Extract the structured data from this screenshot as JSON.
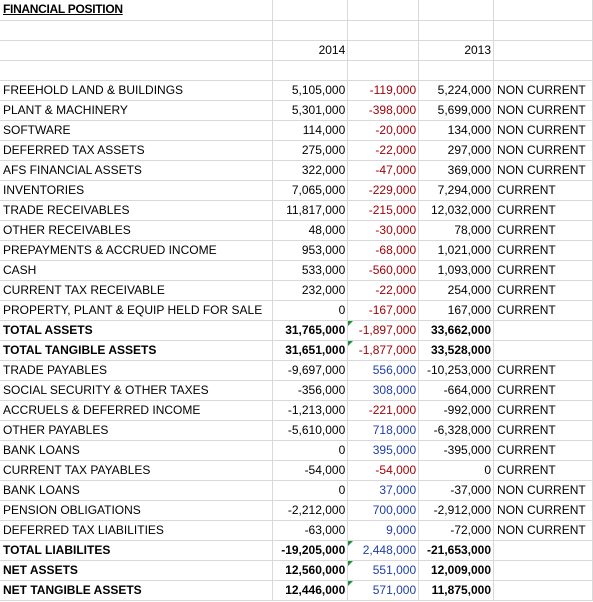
{
  "title": "FINANCIAL POSITION",
  "year_current": "2014",
  "year_prior": "2013",
  "colors": {
    "negative_change": "#9c0006",
    "positive_change": "#1f3fa3",
    "error_marker": "#1e8f3a",
    "gridline": "#d9d9d9"
  },
  "rows": [
    {
      "label": "FREEHOLD LAND & BUILDINGS",
      "v2014": "5,105,000",
      "change": "-119,000",
      "sign": "neg",
      "v2013": "5,224,000",
      "class": "NON CURRENT"
    },
    {
      "label": "PLANT & MACHINERY",
      "v2014": "5,301,000",
      "change": "-398,000",
      "sign": "neg",
      "v2013": "5,699,000",
      "class": "NON CURRENT"
    },
    {
      "label": "SOFTWARE",
      "v2014": "114,000",
      "change": "-20,000",
      "sign": "neg",
      "v2013": "134,000",
      "class": "NON CURRENT"
    },
    {
      "label": "DEFERRED TAX ASSETS",
      "v2014": "275,000",
      "change": "-22,000",
      "sign": "neg",
      "v2013": "297,000",
      "class": "NON CURRENT"
    },
    {
      "label": "AFS FINANCIAL ASSETS",
      "v2014": "322,000",
      "change": "-47,000",
      "sign": "neg",
      "v2013": "369,000",
      "class": "NON CURRENT"
    },
    {
      "label": "INVENTORIES",
      "v2014": "7,065,000",
      "change": "-229,000",
      "sign": "neg",
      "v2013": "7,294,000",
      "class": "CURRENT"
    },
    {
      "label": "TRADE RECEIVABLES",
      "v2014": "11,817,000",
      "change": "-215,000",
      "sign": "neg",
      "v2013": "12,032,000",
      "class": "CURRENT"
    },
    {
      "label": "OTHER RECEIVABLES",
      "v2014": "48,000",
      "change": "-30,000",
      "sign": "neg",
      "v2013": "78,000",
      "class": "CURRENT"
    },
    {
      "label": "PREPAYMENTS & ACCRUED INCOME",
      "v2014": "953,000",
      "change": "-68,000",
      "sign": "neg",
      "v2013": "1,021,000",
      "class": "CURRENT"
    },
    {
      "label": "CASH",
      "v2014": "533,000",
      "change": "-560,000",
      "sign": "neg",
      "v2013": "1,093,000",
      "class": "CURRENT"
    },
    {
      "label": "CURRENT TAX RECEIVABLE",
      "v2014": "232,000",
      "change": "-22,000",
      "sign": "neg",
      "v2013": "254,000",
      "class": "CURRENT"
    },
    {
      "label": "PROPERTY, PLANT & EQUIP HELD FOR SALE",
      "v2014": "0",
      "change": "-167,000",
      "sign": "neg",
      "v2013": "167,000",
      "class": "CURRENT"
    },
    {
      "label": "TOTAL ASSETS",
      "v2014": "31,765,000",
      "change": "-1,897,000",
      "sign": "neg",
      "v2013": "33,662,000",
      "class": "",
      "bold": true,
      "marker": true
    },
    {
      "label": "TOTAL TANGIBLE ASSETS",
      "v2014": "31,651,000",
      "change": "-1,877,000",
      "sign": "neg",
      "v2013": "33,528,000",
      "class": "",
      "bold": true,
      "marker": true
    },
    {
      "label": "TRADE PAYABLES",
      "v2014": "-9,697,000",
      "change": "556,000",
      "sign": "pos",
      "v2013": "-10,253,000",
      "class": "CURRENT"
    },
    {
      "label": "SOCIAL SECURITY & OTHER TAXES",
      "v2014": "-356,000",
      "change": "308,000",
      "sign": "pos",
      "v2013": "-664,000",
      "class": "CURRENT"
    },
    {
      "label": "ACCRUELS & DEFERRED INCOME",
      "v2014": "-1,213,000",
      "change": "-221,000",
      "sign": "neg",
      "v2013": "-992,000",
      "class": "CURRENT"
    },
    {
      "label": "OTHER PAYABLES",
      "v2014": "-5,610,000",
      "change": "718,000",
      "sign": "pos",
      "v2013": "-6,328,000",
      "class": "CURRENT"
    },
    {
      "label": "BANK LOANS",
      "v2014": "0",
      "change": "395,000",
      "sign": "pos",
      "v2013": "-395,000",
      "class": "CURRENT"
    },
    {
      "label": "CURRENT TAX PAYABLES",
      "v2014": "-54,000",
      "change": "-54,000",
      "sign": "neg",
      "v2013": "0",
      "class": "CURRENT"
    },
    {
      "label": "BANK LOANS",
      "v2014": "0",
      "change": "37,000",
      "sign": "pos",
      "v2013": "-37,000",
      "class": "NON CURRENT"
    },
    {
      "label": "PENSION OBLIGATIONS",
      "v2014": "-2,212,000",
      "change": "700,000",
      "sign": "pos",
      "v2013": "-2,912,000",
      "class": "NON CURRENT"
    },
    {
      "label": "DEFERRED TAX LIABILITIES",
      "v2014": "-63,000",
      "change": "9,000",
      "sign": "pos",
      "v2013": "-72,000",
      "class": "NON CURRENT"
    },
    {
      "label": "TOTAL LIABILITES",
      "v2014": "-19,205,000",
      "change": "2,448,000",
      "sign": "pos",
      "v2013": "-21,653,000",
      "class": "",
      "bold": true,
      "marker": true
    },
    {
      "label": "NET ASSETS",
      "v2014": "12,560,000",
      "change": "551,000",
      "sign": "pos",
      "v2013": "12,009,000",
      "class": "",
      "bold": true,
      "marker": true
    },
    {
      "label": "NET TANGIBLE ASSETS",
      "v2014": "12,446,000",
      "change": "571,000",
      "sign": "pos",
      "v2013": "11,875,000",
      "class": "",
      "bold": true,
      "marker": true
    }
  ]
}
